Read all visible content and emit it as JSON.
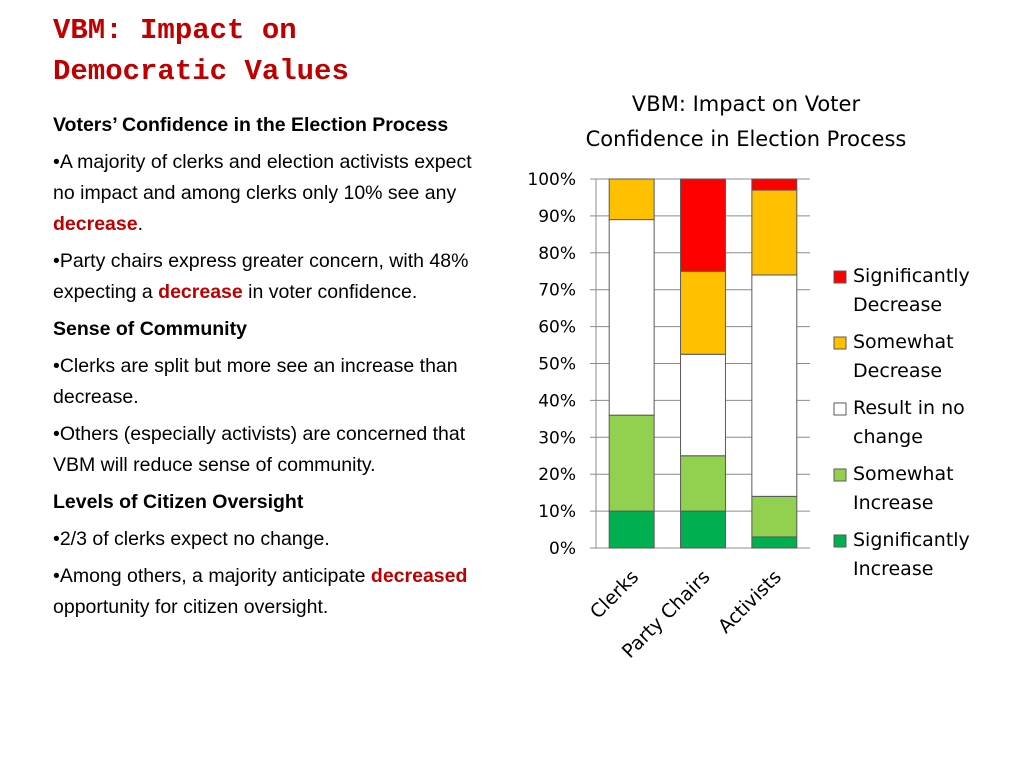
{
  "slide": {
    "title_line1": "VBM: Impact on",
    "title_line2": "Democratic Values",
    "title_color": "#c00000"
  },
  "body": {
    "section1_heading": "Voters’  Confidence in the Election Process",
    "bullet1_text": "•A majority of clerks and election activists expect no impact and among clerks only 10% see any ",
    "bullet1_emph": "decrease",
    "bullet1_tail": ".",
    "bullet2_text": "•Party chairs express greater concern, with 48% expecting a ",
    "bullet2_emph": "decrease",
    "bullet2_tail": " in voter confidence.",
    "section2_heading": "Sense of Community",
    "bullet3_text": "•Clerks are split but more see an increase than decrease.",
    "bullet4_text": "•Others (especially activists) are concerned that VBM will reduce sense of community.",
    "section3_heading": "Levels of Citizen Oversight",
    "bullet5_text": "•2/3 of clerks expect no change.",
    "bullet6_text": "•Among others, a majority anticipate ",
    "bullet6_emph": "decreased",
    "bullet6_tail": " opportunity for citizen oversight."
  },
  "chart_data": {
    "type": "bar",
    "stacked": true,
    "title": "VBM: Impact on Voter Confidence in Election Process",
    "title_lines": [
      "VBM: Impact on Voter",
      "Confidence in Election Process"
    ],
    "categories": [
      "Clerks",
      "Party Chairs",
      "Activists"
    ],
    "ylim": [
      0,
      100
    ],
    "y_ticks": [
      "0%",
      "10%",
      "20%",
      "30%",
      "40%",
      "50%",
      "60%",
      "70%",
      "80%",
      "90%",
      "100%"
    ],
    "grid": true,
    "legend_position": "right",
    "series": [
      {
        "name": "Significantly Increase",
        "legend_lines": [
          "Significantly",
          "Increase"
        ],
        "color": "#00b050",
        "values": [
          10,
          10,
          3
        ]
      },
      {
        "name": "Somewhat Increase",
        "legend_lines": [
          "Somewhat",
          "Increase"
        ],
        "color": "#92d050",
        "values": [
          26,
          15,
          11
        ]
      },
      {
        "name": "Result in no change",
        "legend_lines": [
          "Result in no",
          "change"
        ],
        "color": "#ffffff",
        "values": [
          53,
          27.5,
          60
        ]
      },
      {
        "name": "Somewhat Decrease",
        "legend_lines": [
          "Somewhat",
          "Decrease"
        ],
        "color": "#ffc000",
        "values": [
          11,
          22.5,
          23
        ]
      },
      {
        "name": "Significantly Decrease",
        "legend_lines": [
          "Significantly",
          "Decrease"
        ],
        "color": "#ff0000",
        "values": [
          0,
          25,
          3
        ]
      }
    ]
  }
}
